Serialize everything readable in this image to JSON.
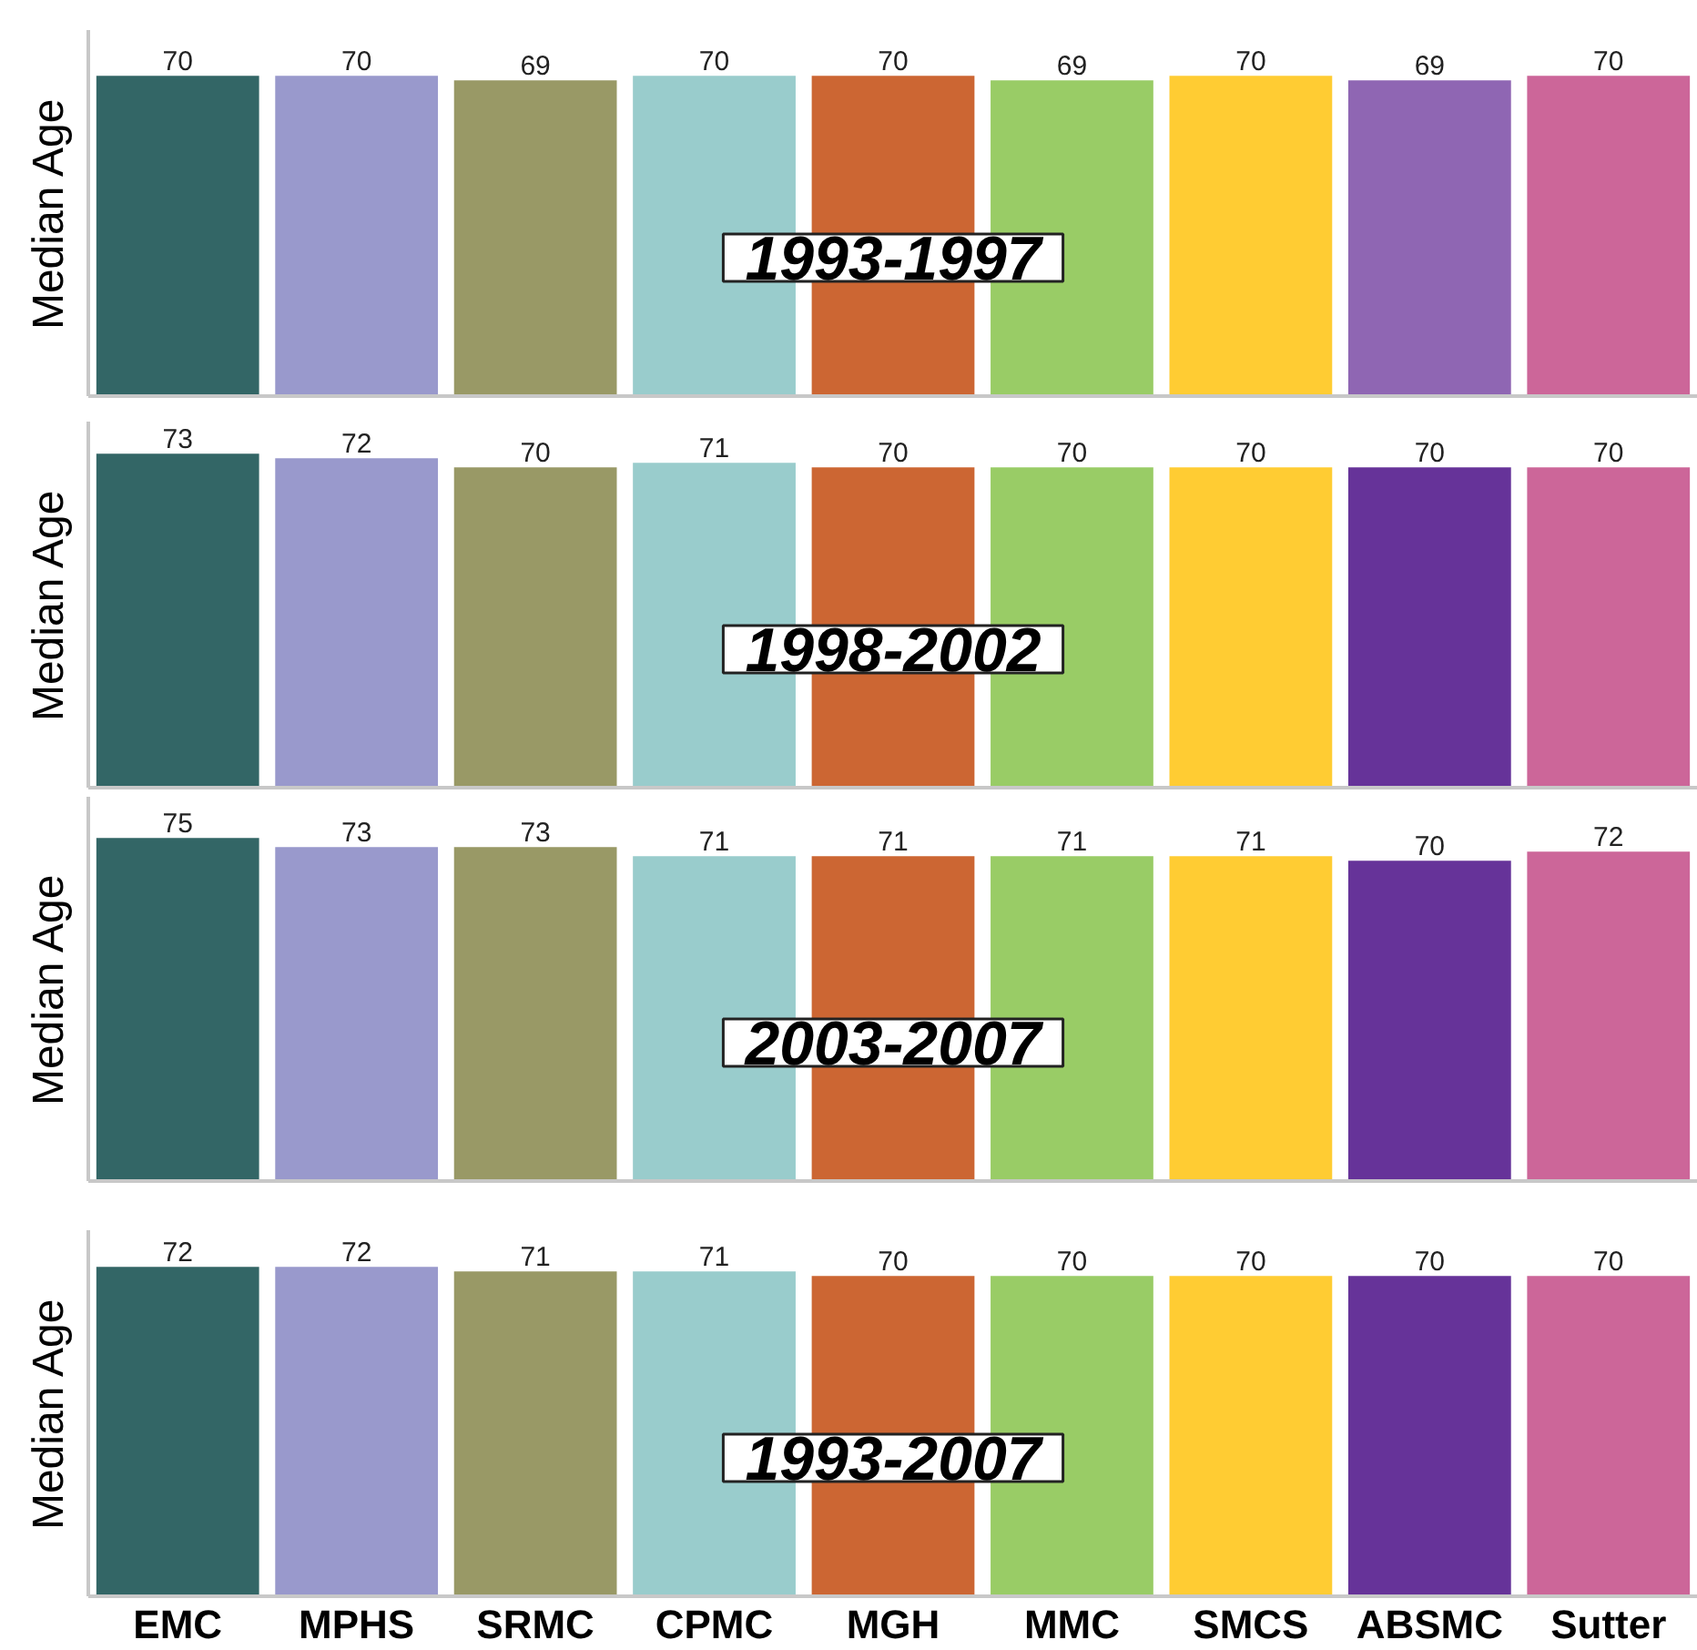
{
  "chart_data": [
    {
      "type": "bar",
      "title": "1993-1997",
      "ylabel": "Median Age",
      "categories": [
        null,
        null,
        null,
        null,
        null,
        null,
        null,
        null,
        null
      ],
      "values": [
        70,
        70,
        69,
        70,
        70,
        69,
        70,
        69,
        70
      ],
      "colors": [
        "#336666",
        "#9999cc",
        "#999966",
        "#99cccc",
        "#cc6633",
        "#99cc66",
        "#ffcc33",
        "#8f66b3",
        "#cc6699"
      ],
      "ylim": [
        0,
        80
      ],
      "data_labels": true,
      "tick_labels": false
    },
    {
      "type": "bar",
      "title": "1998-2002",
      "ylabel": "Median Age",
      "categories": [
        null,
        null,
        null,
        null,
        null,
        null,
        null,
        null,
        null
      ],
      "values": [
        73,
        72,
        70,
        71,
        70,
        70,
        70,
        70,
        70
      ],
      "colors": [
        "#336666",
        "#9999cc",
        "#999966",
        "#99cccc",
        "#cc6633",
        "#99cc66",
        "#ffcc33",
        "#663399",
        "#cc6699"
      ],
      "ylim": [
        0,
        80
      ],
      "data_labels": true,
      "tick_labels": false
    },
    {
      "type": "bar",
      "title": "2003-2007",
      "ylabel": "Median Age",
      "categories": [
        null,
        null,
        null,
        null,
        null,
        null,
        null,
        null,
        null
      ],
      "values": [
        75,
        73,
        73,
        71,
        71,
        71,
        71,
        70,
        72
      ],
      "colors": [
        "#336666",
        "#9999cc",
        "#999966",
        "#99cccc",
        "#cc6633",
        "#99cc66",
        "#ffcc33",
        "#663399",
        "#cc6699"
      ],
      "ylim": [
        0,
        84
      ],
      "data_labels": true,
      "tick_labels": false
    },
    {
      "type": "bar",
      "title": "1993-2007",
      "ylabel": "Median Age",
      "categories": [
        "EMC",
        "MPHS",
        "SRMC",
        "CPMC",
        "MGH",
        "MMC",
        "SMCS",
        "ABSMC",
        "Sutter"
      ],
      "values": [
        72,
        72,
        71,
        71,
        70,
        70,
        70,
        70,
        70
      ],
      "colors": [
        "#336666",
        "#9999cc",
        "#999966",
        "#99cccc",
        "#cc6633",
        "#99cc66",
        "#ffcc33",
        "#663399",
        "#cc6699"
      ],
      "ylim": [
        0,
        80
      ],
      "data_labels": true,
      "tick_labels": "x"
    }
  ]
}
